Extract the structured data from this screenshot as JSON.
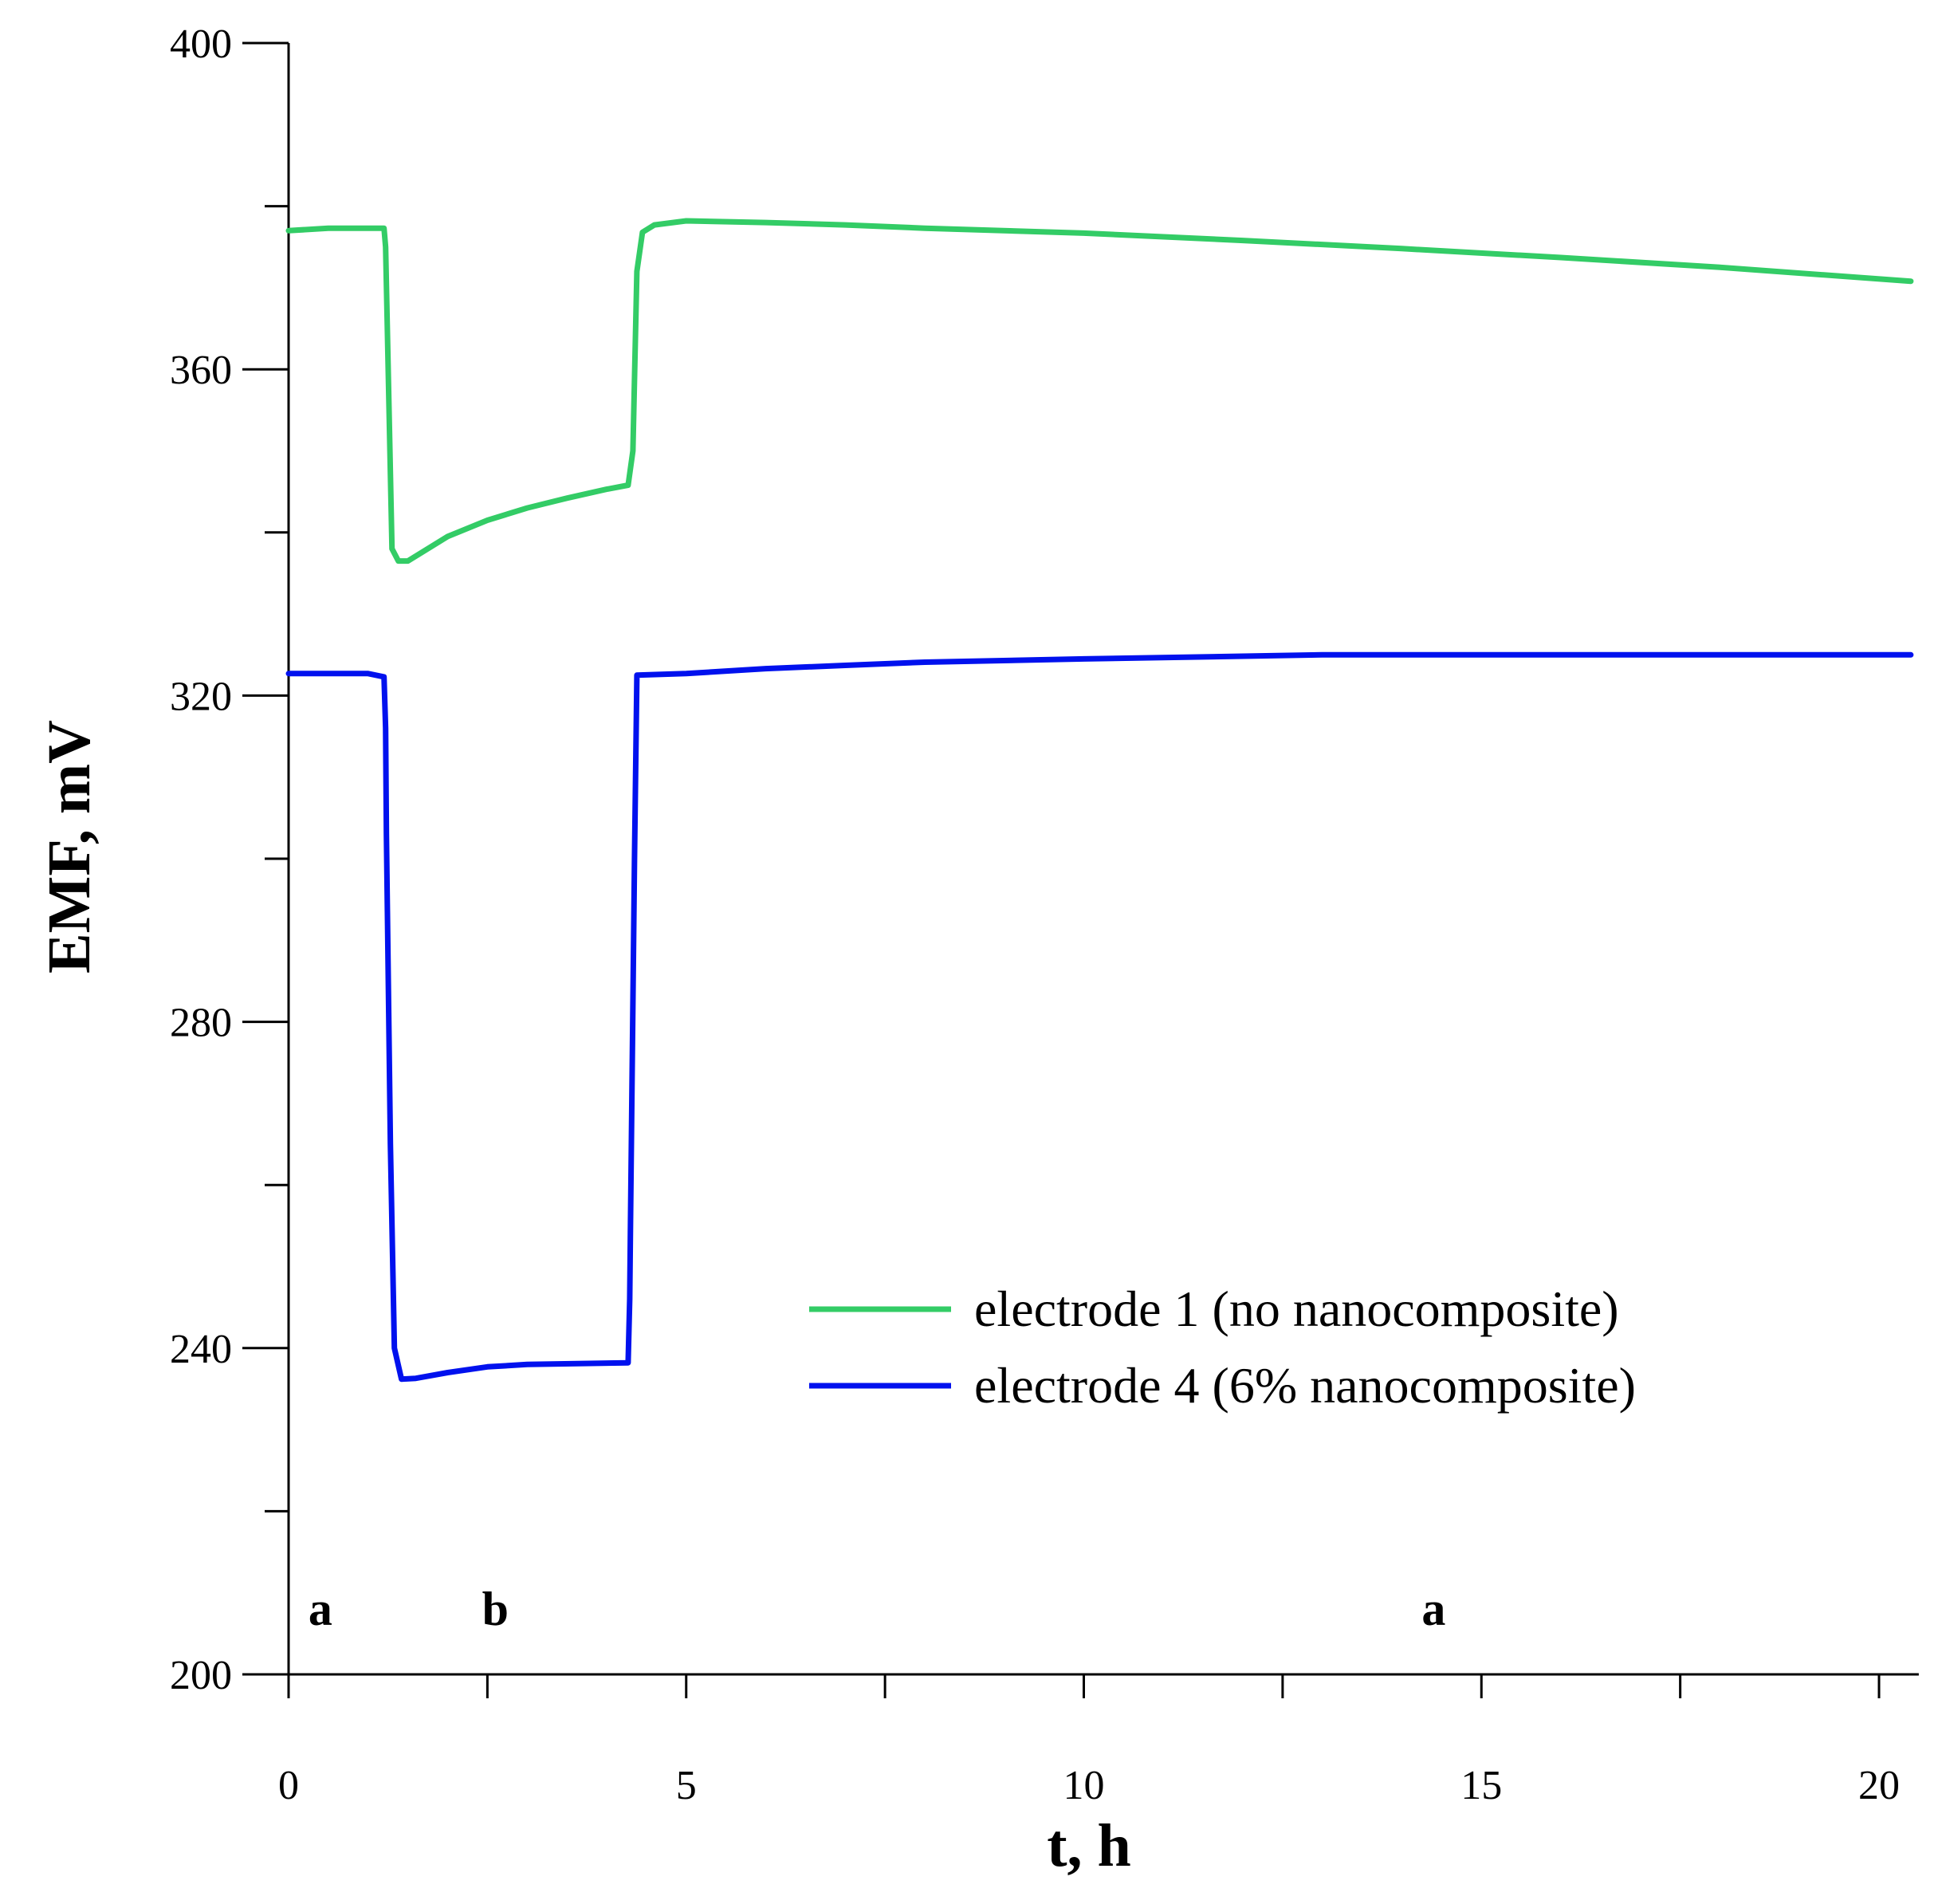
{
  "chart_data": {
    "type": "line",
    "xlabel": "t, h",
    "ylabel": "EMF, mV",
    "xlim": [
      0,
      20.5
    ],
    "ylim": [
      200,
      400
    ],
    "x_ticks": [
      0,
      5,
      10,
      15,
      20
    ],
    "x_minor_ticks": [
      2.5,
      7.5,
      12.5,
      17.5
    ],
    "y_ticks": [
      200,
      240,
      280,
      320,
      360,
      400
    ],
    "y_minor_ticks": [
      220,
      260,
      300,
      340,
      380
    ],
    "grid": false,
    "legend_position": "lower-right",
    "series": [
      {
        "name": "electrode 1 (no nanocomposite)",
        "color": "#33cc66",
        "points": [
          [
            0,
            377
          ],
          [
            0.5,
            377.3
          ],
          [
            1.2,
            377.3
          ],
          [
            1.22,
            375
          ],
          [
            1.3,
            338
          ],
          [
            1.38,
            336.5
          ],
          [
            1.5,
            336.5
          ],
          [
            2.0,
            339.5
          ],
          [
            2.5,
            341.5
          ],
          [
            3.0,
            343
          ],
          [
            3.5,
            344.2
          ],
          [
            4.0,
            345.3
          ],
          [
            4.27,
            345.8
          ],
          [
            4.33,
            350
          ],
          [
            4.38,
            372
          ],
          [
            4.45,
            376.8
          ],
          [
            4.6,
            377.7
          ],
          [
            5.0,
            378.2
          ],
          [
            6.0,
            378
          ],
          [
            7.0,
            377.7
          ],
          [
            8.0,
            377.3
          ],
          [
            10.0,
            376.7
          ],
          [
            12.0,
            375.8
          ],
          [
            14.0,
            374.8
          ],
          [
            16.0,
            373.7
          ],
          [
            18.0,
            372.5
          ],
          [
            20.4,
            370.8
          ]
        ]
      },
      {
        "name": "electrode 4 (6% nanocomposite)",
        "color": "#0011ee",
        "points": [
          [
            0,
            322.7
          ],
          [
            1.0,
            322.7
          ],
          [
            1.2,
            322.3
          ],
          [
            1.22,
            316
          ],
          [
            1.23,
            303
          ],
          [
            1.28,
            265
          ],
          [
            1.33,
            240
          ],
          [
            1.42,
            236.2
          ],
          [
            1.6,
            236.3
          ],
          [
            2.0,
            237
          ],
          [
            2.5,
            237.7
          ],
          [
            3.0,
            238
          ],
          [
            4.27,
            238.2
          ],
          [
            4.29,
            246
          ],
          [
            4.3,
            255.5
          ],
          [
            4.35,
            300
          ],
          [
            4.38,
            322.5
          ],
          [
            5.0,
            322.7
          ],
          [
            6.0,
            323.3
          ],
          [
            7.0,
            323.7
          ],
          [
            8.0,
            324.1
          ],
          [
            10.0,
            324.5
          ],
          [
            13.0,
            325
          ],
          [
            20.4,
            325
          ]
        ]
      }
    ],
    "annotations": [
      {
        "text": "a",
        "x": 0.4,
        "y": 208
      },
      {
        "text": "b",
        "x": 2.6,
        "y": 208
      },
      {
        "text": "a",
        "x": 14.4,
        "y": 208
      }
    ]
  }
}
